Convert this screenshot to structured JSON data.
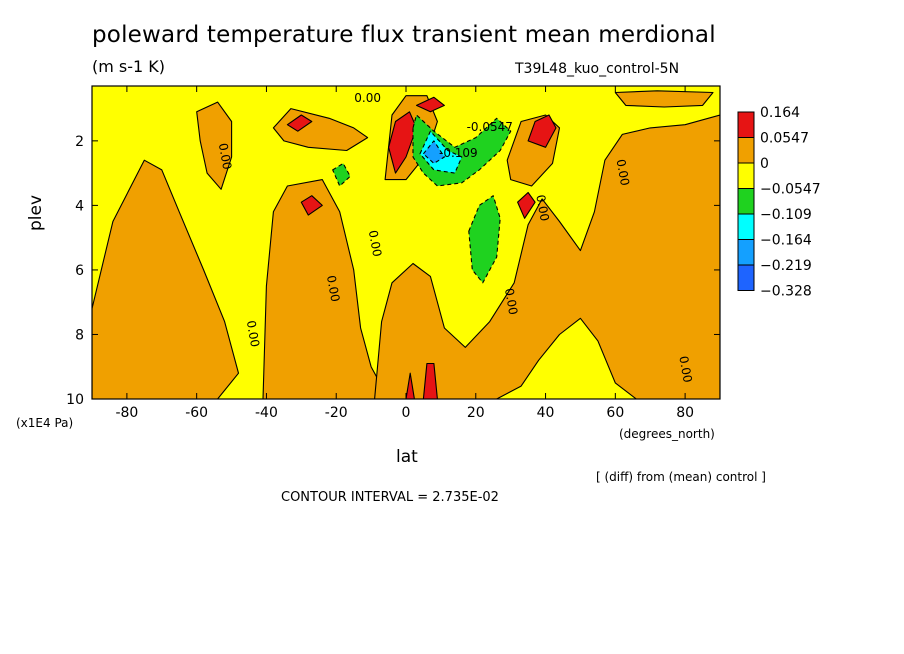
{
  "header": {
    "title": "poleward temperature flux transient mean merdional",
    "units": "(m s-1 K)",
    "run_name": "T39L48_kuo_control-5N"
  },
  "footer": {
    "diff_note": "[ (diff) from (mean) control ]",
    "contour_interval": "CONTOUR INTERVAL = 2.735E-02"
  },
  "colors": {
    "red": "#e61414",
    "orange": "#f0a000",
    "yellow": "#ffff00",
    "green": "#1fd21f",
    "cyan": "#00ffff",
    "sky": "#14a0ff",
    "blue": "#1e64ff"
  },
  "chart_data": {
    "type": "heatmap",
    "subtype": "filled contour (latitude-pressure cross section)",
    "xlabel": "lat",
    "xunits": "(degrees_north)",
    "ylabel": "plev",
    "yunits": "(x1E4 Pa)",
    "xlim": [
      -90,
      90
    ],
    "ylim": [
      10,
      0.3
    ],
    "y_inverted": true,
    "x_ticks": [
      -80,
      -60,
      -40,
      -20,
      0,
      20,
      40,
      60,
      80
    ],
    "y_ticks": [
      2,
      4,
      6,
      8,
      10
    ],
    "colorbar": {
      "placement": "right",
      "labels": [
        "0.164",
        "0.0547",
        "0",
        "−0.0547",
        "−0.109",
        "−0.164",
        "−0.219",
        "−0.328"
      ],
      "bins": [
        {
          "color": "#e61414",
          "range": [
            0.0547,
            0.164
          ]
        },
        {
          "color": "#f0a000",
          "range": [
            0,
            0.0547
          ]
        },
        {
          "color": "#ffff00",
          "range": [
            -0.0547,
            0
          ]
        },
        {
          "color": "#1fd21f",
          "range": [
            -0.109,
            -0.0547
          ]
        },
        {
          "color": "#00ffff",
          "range": [
            -0.164,
            -0.109
          ]
        },
        {
          "color": "#14a0ff",
          "range": [
            -0.219,
            -0.164
          ]
        },
        {
          "color": "#1e64ff",
          "range": [
            -0.328,
            -0.219
          ]
        }
      ]
    },
    "contour_labels": [
      {
        "text": "0.00",
        "lat": -53,
        "plev": 2.5
      },
      {
        "text": "0.00",
        "lat": -10,
        "plev": 5.2
      },
      {
        "text": "0.00",
        "lat": -22,
        "plev": 6.6
      },
      {
        "text": "0.00",
        "lat": -45,
        "plev": 8.0
      },
      {
        "text": "0.00",
        "lat": -11,
        "plev": 0.8
      },
      {
        "text": "0.00",
        "lat": 29,
        "plev": 7.0
      },
      {
        "text": "0.00",
        "lat": 38,
        "plev": 4.1
      },
      {
        "text": "0.00",
        "lat": 61,
        "plev": 3.0
      },
      {
        "text": "0.00",
        "lat": 79,
        "plev": 9.1
      },
      {
        "text": "-0.109",
        "lat": 15,
        "plev": 2.5
      },
      {
        "text": "-0.0547",
        "lat": 24,
        "plev": 1.7
      }
    ],
    "regions": [
      {
        "value": 0.03,
        "color": "#f0a000",
        "points": [
          [
            -90,
            7.2
          ],
          [
            -84,
            4.5
          ],
          [
            -75,
            2.6
          ],
          [
            -70,
            2.9
          ],
          [
            -65,
            4.2
          ],
          [
            -58,
            6.0
          ],
          [
            -52,
            7.6
          ],
          [
            -48,
            9.2
          ],
          [
            -54,
            10
          ],
          [
            -90,
            10
          ]
        ]
      },
      {
        "value": 0.03,
        "color": "#f0a000",
        "points": [
          [
            -60,
            1.1
          ],
          [
            -54,
            0.8
          ],
          [
            -50,
            1.4
          ],
          [
            -50,
            2.5
          ],
          [
            -53,
            3.5
          ],
          [
            -57,
            3.0
          ],
          [
            -59,
            2.0
          ]
        ]
      },
      {
        "value": 0.03,
        "color": "#f0a000",
        "points": [
          [
            -41,
            10
          ],
          [
            -40,
            6.5
          ],
          [
            -38,
            4.2
          ],
          [
            -34,
            3.4
          ],
          [
            -24,
            3.2
          ],
          [
            -19,
            4.2
          ],
          [
            -15,
            6.0
          ],
          [
            -13,
            7.8
          ],
          [
            -10,
            9.0
          ],
          [
            -6,
            9.8
          ],
          [
            -4,
            10
          ]
        ]
      },
      {
        "value": 0.03,
        "color": "#f0a000",
        "points": [
          [
            -9,
            10
          ],
          [
            -7,
            7.6
          ],
          [
            -4,
            6.4
          ],
          [
            2,
            5.8
          ],
          [
            7,
            6.2
          ],
          [
            11,
            7.8
          ],
          [
            17,
            8.4
          ],
          [
            24,
            7.6
          ],
          [
            31,
            6.4
          ],
          [
            35,
            4.6
          ],
          [
            39,
            3.8
          ],
          [
            44,
            4.5
          ],
          [
            50,
            5.4
          ],
          [
            54,
            4.2
          ],
          [
            57,
            2.6
          ],
          [
            62,
            1.8
          ],
          [
            70,
            1.6
          ],
          [
            80,
            1.5
          ],
          [
            90,
            1.2
          ],
          [
            90,
            10
          ],
          [
            66,
            10
          ],
          [
            60,
            9.5
          ],
          [
            55,
            8.2
          ],
          [
            50,
            7.5
          ],
          [
            44,
            8.0
          ],
          [
            38,
            8.8
          ],
          [
            33,
            9.6
          ],
          [
            26,
            10
          ]
        ]
      },
      {
        "value": 0.03,
        "color": "#f0a000",
        "points": [
          [
            -38,
            1.6
          ],
          [
            -33,
            1.0
          ],
          [
            -22,
            1.3
          ],
          [
            -15,
            1.6
          ],
          [
            -11,
            1.9
          ],
          [
            -17,
            2.3
          ],
          [
            -28,
            2.2
          ],
          [
            -35,
            2.0
          ]
        ]
      },
      {
        "value": 0.03,
        "color": "#f0a000",
        "points": [
          [
            -6,
            3.2
          ],
          [
            -4,
            1.2
          ],
          [
            0,
            0.6
          ],
          [
            6,
            0.6
          ],
          [
            9,
            1.4
          ],
          [
            6,
            2.4
          ],
          [
            0,
            3.2
          ]
        ]
      },
      {
        "value": 0.03,
        "color": "#f0a000",
        "points": [
          [
            29,
            2.6
          ],
          [
            33,
            1.4
          ],
          [
            40,
            1.2
          ],
          [
            44,
            1.6
          ],
          [
            42,
            2.7
          ],
          [
            36,
            3.4
          ],
          [
            30,
            3.2
          ]
        ]
      },
      {
        "value": 0.03,
        "color": "#f0a000",
        "points": [
          [
            60,
            0.5
          ],
          [
            72,
            0.45
          ],
          [
            88,
            0.5
          ],
          [
            85,
            0.9
          ],
          [
            74,
            0.95
          ],
          [
            63,
            0.9
          ]
        ]
      },
      {
        "value": 0.1,
        "color": "#e61414",
        "points": [
          [
            -34,
            1.5
          ],
          [
            -30,
            1.2
          ],
          [
            -27,
            1.4
          ],
          [
            -31,
            1.7
          ]
        ]
      },
      {
        "value": 0.1,
        "color": "#e61414",
        "points": [
          [
            -30,
            3.9
          ],
          [
            -27,
            3.7
          ],
          [
            -24,
            4.0
          ],
          [
            -28,
            4.3
          ]
        ]
      },
      {
        "value": 0.1,
        "color": "#e61414",
        "points": [
          [
            -5,
            2.2
          ],
          [
            -3,
            1.4
          ],
          [
            1,
            1.1
          ],
          [
            3,
            1.6
          ],
          [
            0,
            2.5
          ],
          [
            -3,
            3.0
          ]
        ]
      },
      {
        "value": 0.1,
        "color": "#e61414",
        "points": [
          [
            3,
            0.9
          ],
          [
            8,
            0.65
          ],
          [
            11,
            0.9
          ],
          [
            7,
            1.1
          ]
        ]
      },
      {
        "value": 0.1,
        "color": "#e61414",
        "points": [
          [
            35,
            2.0
          ],
          [
            37,
            1.4
          ],
          [
            41,
            1.2
          ],
          [
            43,
            1.6
          ],
          [
            40,
            2.2
          ]
        ]
      },
      {
        "value": 0.1,
        "color": "#e61414",
        "points": [
          [
            32,
            3.9
          ],
          [
            35,
            3.6
          ],
          [
            37,
            3.9
          ],
          [
            34,
            4.4
          ]
        ]
      },
      {
        "value": 0.1,
        "color": "#e61414",
        "points": [
          [
            5,
            10
          ],
          [
            6,
            8.9
          ],
          [
            8,
            8.9
          ],
          [
            9,
            10
          ]
        ]
      },
      {
        "value": 0.1,
        "color": "#e61414",
        "points": [
          [
            0,
            10
          ],
          [
            1.2,
            9.2
          ],
          [
            2.4,
            10
          ]
        ]
      },
      {
        "value": -0.08,
        "color": "#1fd21f",
        "points": [
          [
            -21,
            2.9
          ],
          [
            -18,
            2.7
          ],
          [
            -16,
            3.1
          ],
          [
            -19,
            3.4
          ]
        ]
      },
      {
        "value": -0.08,
        "color": "#1fd21f",
        "points": [
          [
            2,
            1.6
          ],
          [
            3,
            1.2
          ],
          [
            8,
            1.7
          ],
          [
            14,
            2.2
          ],
          [
            20,
            1.9
          ],
          [
            26,
            1.3
          ],
          [
            30,
            1.7
          ],
          [
            27,
            2.3
          ],
          [
            21,
            2.9
          ],
          [
            16,
            3.3
          ],
          [
            9,
            3.4
          ],
          [
            5,
            3.0
          ],
          [
            2,
            2.5
          ]
        ]
      },
      {
        "value": -0.08,
        "color": "#1fd21f",
        "points": [
          [
            18,
            4.8
          ],
          [
            21,
            4.0
          ],
          [
            25,
            3.7
          ],
          [
            27,
            4.4
          ],
          [
            26,
            5.6
          ],
          [
            22,
            6.4
          ],
          [
            19,
            6.0
          ]
        ]
      },
      {
        "value": -0.12,
        "color": "#00ffff",
        "points": [
          [
            4,
            2.4
          ],
          [
            7,
            1.7
          ],
          [
            12,
            2.3
          ],
          [
            16,
            2.5
          ],
          [
            14,
            3.0
          ],
          [
            8,
            2.9
          ]
        ]
      },
      {
        "value": -0.19,
        "color": "#14a0ff",
        "points": [
          [
            5,
            2.4
          ],
          [
            8,
            2.0
          ],
          [
            11,
            2.5
          ],
          [
            8,
            2.7
          ]
        ]
      }
    ]
  }
}
